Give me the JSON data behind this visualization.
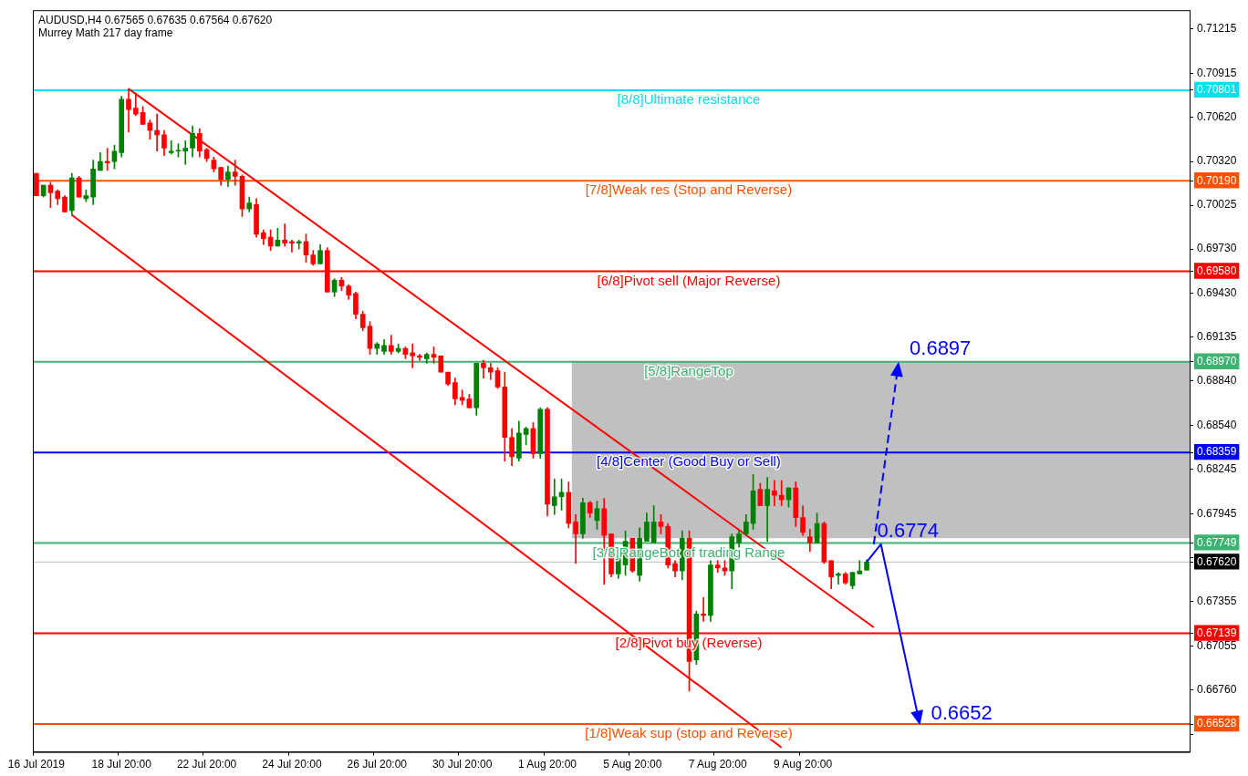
{
  "chart_data": {
    "type": "candlestick",
    "title": "AUDUSD,H4 0.67565 0.67635 0.67564 0.67620",
    "subtitle": "Murrey Math 217 day frame",
    "categories": [
      "16 Jul 2019",
      null,
      null,
      null,
      null,
      null,
      null,
      null,
      null,
      null,
      null,
      null,
      "18 Jul 20:00",
      null,
      null,
      null,
      null,
      null,
      null,
      null,
      null,
      null,
      null,
      null,
      "22 Jul 20:00",
      null,
      null,
      null,
      null,
      null,
      null,
      null,
      null,
      null,
      null,
      null,
      "24 Jul 20:00",
      null,
      null,
      null,
      null,
      null,
      null,
      null,
      null,
      null,
      null,
      null,
      "26 Jul 20:00",
      null,
      null,
      null,
      null,
      null,
      null,
      null,
      null,
      null,
      null,
      null,
      "30 Jul 20:00",
      null,
      null,
      null,
      null,
      null,
      null,
      null,
      null,
      null,
      null,
      null,
      "1 Aug 20:00",
      null,
      null,
      null,
      null,
      null,
      null,
      null,
      null,
      null,
      null,
      null,
      "5 Aug 20:00",
      null,
      null,
      null,
      null,
      null,
      null,
      null,
      null,
      null,
      null,
      null,
      "7 Aug 20:00",
      null,
      null,
      null,
      null,
      null,
      null,
      null,
      null,
      null,
      null,
      null,
      "9 Aug 20:00",
      null,
      null,
      null,
      null,
      null,
      null,
      null,
      null,
      null,
      null,
      null,
      null,
      null,
      null,
      null,
      null,
      null,
      null,
      null,
      null,
      null,
      null,
      null,
      null,
      null,
      null,
      null,
      null,
      null,
      null,
      null,
      null,
      null,
      null,
      null,
      null,
      null,
      null,
      null,
      null,
      null,
      null,
      null,
      null,
      null,
      null,
      null,
      null,
      null,
      null,
      null,
      null,
      null,
      null
    ],
    "ohlc": [
      [
        0.7024,
        0.7024,
        0.7009,
        0.7009
      ],
      [
        0.7009,
        0.7016,
        0.7008,
        0.7016
      ],
      [
        0.7016,
        0.7018,
        0.7001,
        0.7011
      ],
      [
        0.7012,
        0.7013,
        0.7003,
        0.7007
      ],
      [
        0.7008,
        0.7009,
        0.6998,
        0.6998
      ],
      [
        0.6999,
        0.7024,
        0.6996,
        0.7021
      ],
      [
        0.7021,
        0.7022,
        0.7008,
        0.7008
      ],
      [
        0.7007,
        0.7013,
        0.7005,
        0.7009
      ],
      [
        0.7008,
        0.7033,
        0.7003,
        0.7027
      ],
      [
        0.7026,
        0.7038,
        0.7026,
        0.7032
      ],
      [
        0.7032,
        0.7041,
        0.7026,
        0.7031
      ],
      [
        0.7032,
        0.7043,
        0.7027,
        0.7039
      ],
      [
        0.7038,
        0.7076,
        0.7035,
        0.7074
      ],
      [
        0.7074,
        0.7081,
        0.7052,
        0.7067
      ],
      [
        0.7068,
        0.7078,
        0.7063,
        0.7064
      ],
      [
        0.7065,
        0.7069,
        0.7057,
        0.7057
      ],
      [
        0.7058,
        0.706,
        0.7047,
        0.7053
      ],
      [
        0.7053,
        0.7064,
        0.7039,
        0.705
      ],
      [
        0.705,
        0.7053,
        0.7036,
        0.7041
      ],
      [
        0.7038,
        0.7046,
        0.7037,
        0.7039
      ],
      [
        0.7039,
        0.7044,
        0.7035,
        0.7039
      ],
      [
        0.7039,
        0.7046,
        0.703,
        0.7041
      ],
      [
        0.7041,
        0.7056,
        0.7035,
        0.7051
      ],
      [
        0.7051,
        0.7054,
        0.7035,
        0.7039
      ],
      [
        0.704,
        0.7041,
        0.7032,
        0.7034
      ],
      [
        0.7033,
        0.7035,
        0.7025,
        0.7027
      ],
      [
        0.7028,
        0.7028,
        0.7016,
        0.702
      ],
      [
        0.702,
        0.7029,
        0.7015,
        0.7025
      ],
      [
        0.7025,
        0.7033,
        0.7016,
        0.7022
      ],
      [
        0.7022,
        0.7023,
        0.6995,
        0.7
      ],
      [
        0.7,
        0.7008,
        0.6998,
        0.7004
      ],
      [
        0.7003,
        0.7007,
        0.6981,
        0.6983
      ],
      [
        0.6984,
        0.6986,
        0.6976,
        0.698
      ],
      [
        0.6981,
        0.6986,
        0.6972,
        0.6975
      ],
      [
        0.6975,
        0.6987,
        0.6975,
        0.6979
      ],
      [
        0.6979,
        0.699,
        0.6975,
        0.6977
      ],
      [
        0.6978,
        0.6979,
        0.6971,
        0.6977
      ],
      [
        0.6977,
        0.6979,
        0.6973,
        0.6978
      ],
      [
        0.6978,
        0.6983,
        0.6964,
        0.6969
      ],
      [
        0.6969,
        0.6972,
        0.6962,
        0.6963
      ],
      [
        0.6963,
        0.6976,
        0.6963,
        0.6972
      ],
      [
        0.6972,
        0.6974,
        0.6944,
        0.6944
      ],
      [
        0.6944,
        0.6953,
        0.6941,
        0.6952
      ],
      [
        0.6952,
        0.6954,
        0.6945,
        0.6948
      ],
      [
        0.6948,
        0.6949,
        0.6939,
        0.6942
      ],
      [
        0.6943,
        0.6944,
        0.6926,
        0.6929
      ],
      [
        0.6929,
        0.6931,
        0.6918,
        0.692
      ],
      [
        0.6921,
        0.6924,
        0.6902,
        0.6906
      ],
      [
        0.6906,
        0.691,
        0.6902,
        0.6909
      ],
      [
        0.6904,
        0.6912,
        0.6902,
        0.6908
      ],
      [
        0.6908,
        0.6915,
        0.6902,
        0.6904
      ],
      [
        0.6904,
        0.6909,
        0.6903,
        0.6906
      ],
      [
        0.6906,
        0.6907,
        0.6899,
        0.6902
      ],
      [
        0.6903,
        0.6909,
        0.6893,
        0.6901
      ],
      [
        0.6901,
        0.6902,
        0.6898,
        0.69
      ],
      [
        0.6899,
        0.6903,
        0.6896,
        0.6902
      ],
      [
        0.6902,
        0.6907,
        0.6896,
        0.69
      ],
      [
        0.6901,
        0.6901,
        0.689,
        0.689
      ],
      [
        0.689,
        0.689,
        0.6881,
        0.6882
      ],
      [
        0.6883,
        0.6886,
        0.6868,
        0.6872
      ],
      [
        0.6873,
        0.6878,
        0.6868,
        0.6871
      ],
      [
        0.6872,
        0.6875,
        0.6866,
        0.6866
      ],
      [
        0.6866,
        0.6896,
        0.6861,
        0.6896
      ],
      [
        0.6896,
        0.6898,
        0.6886,
        0.6893
      ],
      [
        0.6893,
        0.6896,
        0.6885,
        0.689
      ],
      [
        0.6891,
        0.6893,
        0.6879,
        0.688
      ],
      [
        0.688,
        0.689,
        0.683,
        0.6846
      ],
      [
        0.6846,
        0.6852,
        0.6827,
        0.6833
      ],
      [
        0.6832,
        0.6857,
        0.683,
        0.6849
      ],
      [
        0.6848,
        0.6853,
        0.6841,
        0.6852
      ],
      [
        0.6852,
        0.6856,
        0.6832,
        0.6835
      ],
      [
        0.6835,
        0.6866,
        0.6832,
        0.6865
      ],
      [
        0.6865,
        0.6866,
        0.6793,
        0.6801
      ],
      [
        0.68,
        0.6818,
        0.6794,
        0.6806
      ],
      [
        0.6806,
        0.6818,
        0.6797,
        0.6809
      ],
      [
        0.6809,
        0.6816,
        0.6785,
        0.6788
      ],
      [
        0.6789,
        0.6794,
        0.6761,
        0.6781
      ],
      [
        0.6781,
        0.6805,
        0.6778,
        0.6802
      ],
      [
        0.6802,
        0.6803,
        0.6792,
        0.6795
      ],
      [
        0.679,
        0.6803,
        0.6784,
        0.6798
      ],
      [
        0.6798,
        0.6805,
        0.6747,
        0.678
      ],
      [
        0.6781,
        0.6781,
        0.6752,
        0.6754
      ],
      [
        0.6754,
        0.6766,
        0.6751,
        0.6766
      ],
      [
        0.676,
        0.6783,
        0.6753,
        0.6776
      ],
      [
        0.6778,
        0.6778,
        0.6755,
        0.6756
      ],
      [
        0.6753,
        0.6785,
        0.6749,
        0.6778
      ],
      [
        0.6776,
        0.6795,
        0.6776,
        0.6789
      ],
      [
        0.6775,
        0.68,
        0.6775,
        0.6789
      ],
      [
        0.6789,
        0.6794,
        0.6781,
        0.6786
      ],
      [
        0.6786,
        0.6788,
        0.6758,
        0.676
      ],
      [
        0.6761,
        0.6763,
        0.6752,
        0.6756
      ],
      [
        0.6756,
        0.6783,
        0.675,
        0.6778
      ],
      [
        0.6778,
        0.6783,
        0.6675,
        0.6695
      ],
      [
        0.6696,
        0.6729,
        0.6693,
        0.6727
      ],
      [
        0.6727,
        0.6738,
        0.6722,
        0.6726
      ],
      [
        0.6726,
        0.6763,
        0.6722,
        0.676
      ],
      [
        0.676,
        0.6763,
        0.6755,
        0.6758
      ],
      [
        0.6758,
        0.6763,
        0.6753,
        0.6756
      ],
      [
        0.6756,
        0.6781,
        0.6744,
        0.6779
      ],
      [
        0.6775,
        0.6783,
        0.6772,
        0.6781
      ],
      [
        0.6781,
        0.6794,
        0.678,
        0.6789
      ],
      [
        0.6788,
        0.6821,
        0.6784,
        0.681
      ],
      [
        0.6811,
        0.6815,
        0.68,
        0.68
      ],
      [
        0.68,
        0.6819,
        0.6776,
        0.6811
      ],
      [
        0.681,
        0.6817,
        0.68,
        0.6807
      ],
      [
        0.6807,
        0.6817,
        0.68,
        0.6804
      ],
      [
        0.6804,
        0.6812,
        0.6799,
        0.6812
      ],
      [
        0.6812,
        0.6816,
        0.6786,
        0.6792
      ],
      [
        0.6792,
        0.68,
        0.678,
        0.6782
      ],
      [
        0.6779,
        0.6784,
        0.6769,
        0.6775
      ],
      [
        0.6775,
        0.6795,
        0.6775,
        0.6788
      ],
      [
        0.6788,
        0.6789,
        0.6761,
        0.6762
      ],
      [
        0.6763,
        0.6763,
        0.6744,
        0.6752
      ],
      [
        0.6753,
        0.6755,
        0.6747,
        0.6754
      ],
      [
        0.6754,
        0.6755,
        0.6747,
        0.6748
      ],
      [
        0.6746,
        0.6755,
        0.6744,
        0.6755
      ],
      [
        0.6754,
        0.6763,
        0.6754,
        0.6756
      ],
      [
        0.67565,
        0.67635,
        0.67564,
        0.6762
      ],
      null,
      null,
      null,
      null,
      null,
      null,
      null,
      null,
      null,
      null,
      null,
      null,
      null,
      null,
      null,
      null,
      null,
      null,
      null,
      null,
      null,
      null,
      null,
      null,
      null,
      null,
      null,
      null,
      null,
      null,
      null,
      null,
      null,
      null,
      null,
      null,
      null,
      null,
      null,
      null,
      null,
      null,
      null,
      null,
      null
    ],
    "series": [
      {
        "type": "line",
        "color": "#ff0000",
        "line_style": "solid",
        "values": [
          null,
          null,
          null,
          null,
          null,
          null,
          null,
          null,
          null,
          null,
          null,
          null,
          null,
          0.7081,
          null,
          null,
          null,
          null,
          null,
          null,
          null,
          null,
          null,
          null,
          null,
          null,
          null,
          null,
          null,
          null,
          null,
          null,
          null,
          null,
          null,
          null,
          null,
          null,
          null,
          null,
          null,
          null,
          null,
          null,
          null,
          null,
          null,
          null,
          null,
          null,
          null,
          null,
          null,
          null,
          null,
          null,
          null,
          null,
          null,
          null,
          null,
          null,
          null,
          null,
          null,
          null,
          null,
          null,
          null,
          null,
          null,
          null,
          null,
          null,
          null,
          null,
          null,
          null,
          null,
          null,
          null,
          null,
          null,
          null,
          null,
          null,
          null,
          null,
          null,
          null,
          null,
          null,
          null,
          null,
          null,
          null,
          null,
          null,
          null,
          null,
          null,
          null,
          null,
          null,
          null,
          null,
          null,
          null,
          null,
          null,
          null,
          null,
          null,
          null,
          null,
          null,
          null,
          null,
          0.6718,
          null,
          null,
          null,
          null,
          null,
          null,
          null,
          null,
          null,
          null,
          null,
          null,
          null,
          null,
          null,
          null,
          null,
          null,
          null,
          null,
          null,
          null,
          null,
          null,
          null,
          null,
          null,
          null,
          null,
          null,
          null,
          null,
          null,
          null,
          null,
          null,
          null,
          null,
          null,
          null,
          null,
          null,
          null,
          null
        ]
      },
      {
        "type": "line",
        "color": "#ff0000",
        "line_style": "solid",
        "values": [
          null,
          null,
          null,
          null,
          null,
          0.6996,
          null,
          null,
          null,
          null,
          null,
          null,
          null,
          null,
          null,
          null,
          null,
          null,
          null,
          null,
          null,
          null,
          null,
          null,
          null,
          null,
          null,
          null,
          null,
          null,
          null,
          null,
          null,
          null,
          null,
          null,
          null,
          null,
          null,
          null,
          null,
          null,
          null,
          null,
          null,
          null,
          null,
          null,
          null,
          null,
          null,
          null,
          null,
          null,
          null,
          null,
          null,
          null,
          null,
          null,
          null,
          null,
          null,
          null,
          null,
          null,
          null,
          null,
          null,
          null,
          null,
          null,
          null,
          null,
          null,
          null,
          null,
          null,
          null,
          null,
          null,
          null,
          null,
          null,
          null,
          null,
          null,
          null,
          null,
          null,
          null,
          null,
          null,
          null,
          null,
          null,
          null,
          null,
          null,
          null,
          null,
          null,
          null,
          null,
          null,
          0.6637,
          null,
          null,
          null,
          null,
          null,
          null,
          null,
          null,
          null,
          null,
          null,
          null,
          null,
          null,
          null,
          null,
          null,
          null,
          null,
          null,
          null,
          null,
          null,
          null,
          null,
          null,
          null,
          null,
          null,
          null,
          null,
          null,
          null,
          null,
          null,
          null,
          null,
          null,
          null,
          null,
          null,
          null,
          null,
          null,
          null,
          null,
          null,
          null,
          null,
          null,
          null,
          null,
          null,
          null,
          null,
          null,
          null
        ]
      }
    ],
    "ref_lines": [
      {
        "axis": "y",
        "value": 0.70801,
        "label": "[8/8]Ultimate resistance",
        "color": "#00e0f0"
      },
      {
        "axis": "y",
        "value": 0.7019,
        "label": "[7/8]Weak res (Stop and Reverse)",
        "color": "#ff5000"
      },
      {
        "axis": "y",
        "value": 0.6958,
        "label": "[6/8]Pivot sell (Major Reverse)",
        "color": "#ff0000"
      },
      {
        "axis": "y",
        "value": 0.6897,
        "label": "[5/8]RangeTop",
        "color": "#3cb371"
      },
      {
        "axis": "y",
        "value": 0.68359,
        "label": "[4/8]Center (Good Buy or Sell)",
        "color": "#0000ff"
      },
      {
        "axis": "y",
        "value": 0.67749,
        "label": "[3/8]RangeBot of trading Range",
        "color": "#3cb371"
      },
      {
        "axis": "y",
        "value": 0.6762,
        "label": null,
        "color": "#c0c0c0"
      },
      {
        "axis": "y",
        "value": 0.67139,
        "label": "[2/8]Pivot buy (Reverse)",
        "color": "#ff0000"
      },
      {
        "axis": "y",
        "value": 0.66528,
        "label": "[1/8]Weak sup (stop and Reverse)",
        "color": "#ff5000"
      }
    ],
    "bands": [
      {
        "axis": "y",
        "from": 0.6778,
        "to": 0.6897,
        "color": "#c0c0c0"
      }
    ],
    "annotations": [
      {
        "text": "0.6897",
        "y": 0.6897
      },
      {
        "text": "0.6774",
        "y": 0.6774
      },
      {
        "text": "0.6652",
        "y": 0.6652
      }
    ],
    "ylim": [
      0.6634,
      0.7134
    ],
    "yticks": [
      0.71215,
      0.70915,
      {
        "value": 0.7062,
        "label": "0.70620"
      },
      {
        "value": 0.7032,
        "label": "0.70320"
      },
      0.70025,
      {
        "value": 0.6973,
        "label": "0.69730"
      },
      {
        "value": 0.6943,
        "label": "0.69430"
      },
      0.69135,
      {
        "value": 0.6884,
        "label": "0.68840"
      },
      {
        "value": 0.6854,
        "label": "0.68540"
      },
      0.68245,
      0.67945,
      {
        "value": 0.6765,
        "label": null
      },
      0.67355,
      0.67055,
      {
        "value": 0.6676,
        "label": "0.66760"
      },
      {
        "value": 0.6646,
        "label": null
      },
      {
        "value": 0.70801,
        "label": "0.70801"
      },
      {
        "value": 0.7019,
        "label": "0.70190"
      },
      {
        "value": 0.6958,
        "label": "0.69580"
      },
      {
        "value": 0.6897,
        "label": "0.68970"
      },
      {
        "value": 0.68359,
        "label": "0.68359"
      },
      {
        "value": 0.67749,
        "label": "0.67749"
      },
      {
        "value": 0.6762,
        "label": "0.67620"
      },
      {
        "value": 0.67139,
        "label": "0.67139"
      },
      {
        "value": 0.66528,
        "label": "0.66528"
      }
    ],
    "grid": false,
    "legend": false
  }
}
